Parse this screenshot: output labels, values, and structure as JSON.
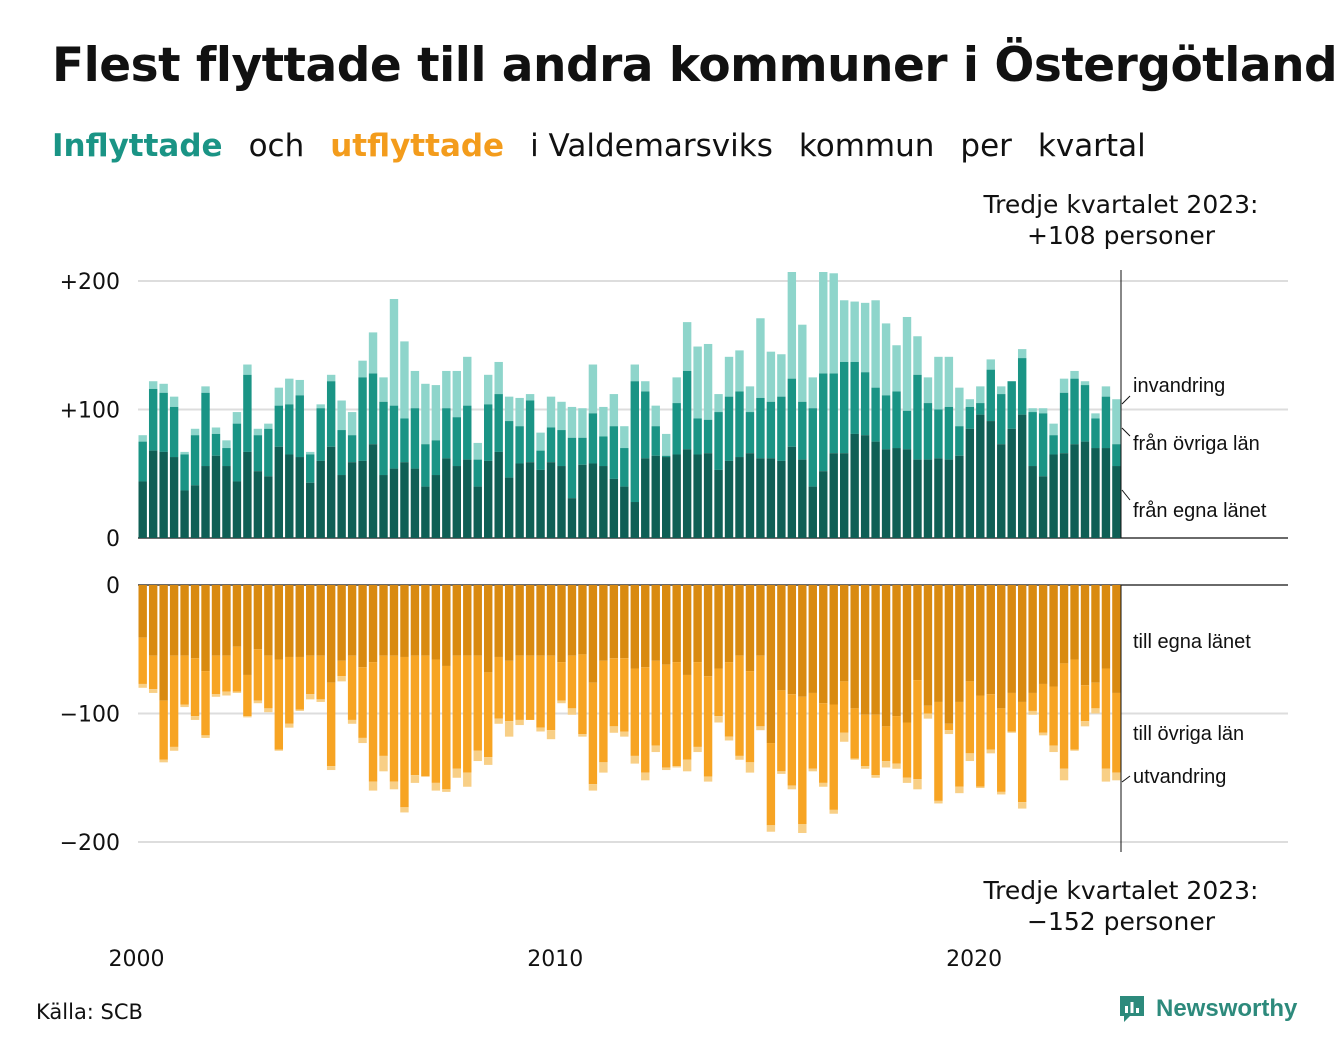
{
  "title": "Flest flyttade till andra kommuner i Östergötland",
  "subtitle": {
    "part1": "Inflyttade",
    "part2": "och",
    "part3": "utflyttade",
    "part4": "i Valdemarsviks",
    "part5": "kommun",
    "part6": "per",
    "part7": "kvartal"
  },
  "annotation_top": {
    "line1": "Tredje kvartalet 2023:",
    "line2": "+108 personer"
  },
  "annotation_bottom": {
    "line1": "Tredje kvartalet 2023:",
    "line2": "−152 personer"
  },
  "source": "Källa: SCB",
  "brand": "Newsworthy",
  "colors": {
    "in_own": "#0f5f55",
    "in_other": "#1a9485",
    "in_immig": "#8ed5cb",
    "out_own": "#d98a10",
    "out_other": "#f7a423",
    "out_emig": "#f8cf86"
  },
  "chart_data": {
    "type": "bar",
    "stacked": true,
    "x_start": "2000 Q1",
    "x_end": "2023 Q3",
    "x_tick_labels": [
      "2000",
      "2010",
      "2020"
    ],
    "y_tick_labels_top": [
      "+200",
      "+100",
      "0"
    ],
    "y_tick_labels_bottom": [
      "0",
      "−100",
      "−200"
    ],
    "ylim_top": [
      0,
      210
    ],
    "ylim_bottom": [
      -210,
      0
    ],
    "grid": true,
    "series_labels": {
      "in_immig": "invandring",
      "in_other": "från övriga län",
      "in_own": "från egna länet",
      "out_own": "till egna länet",
      "out_other": "till övriga län",
      "out_emig": "utvandring"
    },
    "inflow_totals": [
      80,
      122,
      120,
      110,
      67,
      85,
      118,
      86,
      76,
      98,
      135,
      85,
      89,
      117,
      124,
      123,
      67,
      104,
      127,
      107,
      98,
      138,
      160,
      125,
      186,
      153,
      130,
      120,
      119,
      130,
      130,
      141,
      74,
      127,
      137,
      110,
      109,
      112,
      82,
      110,
      106,
      102,
      101,
      135,
      102,
      112,
      87,
      135,
      122,
      103,
      81,
      125,
      168,
      149,
      151,
      112,
      141,
      146,
      118,
      171,
      145,
      143,
      207,
      166,
      125,
      207,
      206,
      185,
      184,
      183,
      185,
      167,
      150,
      172,
      157,
      125,
      141,
      141,
      117,
      108,
      118,
      139,
      118,
      122,
      147,
      101,
      101,
      89,
      124,
      130,
      122,
      97,
      118,
      108
    ],
    "inflow_other_tops": [
      75,
      116,
      113,
      102,
      65,
      80,
      113,
      81,
      70,
      89,
      127,
      80,
      85,
      103,
      104,
      111,
      65,
      101,
      122,
      84,
      80,
      125,
      128,
      106,
      103,
      93,
      101,
      73,
      76,
      101,
      94,
      103,
      61,
      104,
      112,
      91,
      87,
      107,
      68,
      86,
      84,
      78,
      78,
      97,
      79,
      87,
      70,
      122,
      114,
      87,
      64,
      105,
      130,
      93,
      92,
      98,
      110,
      114,
      98,
      109,
      106,
      110,
      124,
      106,
      101,
      128,
      128,
      137,
      137,
      129,
      117,
      111,
      114,
      99,
      127,
      105,
      100,
      102,
      87,
      102,
      105,
      131,
      112,
      122,
      140,
      98,
      97,
      80,
      113,
      124,
      119,
      93,
      110,
      73
    ],
    "inflow_own": [
      44,
      68,
      67,
      63,
      37,
      41,
      56,
      64,
      56,
      44,
      67,
      52,
      48,
      71,
      65,
      63,
      43,
      60,
      71,
      49,
      59,
      60,
      73,
      49,
      54,
      59,
      54,
      40,
      49,
      62,
      56,
      61,
      40,
      60,
      67,
      47,
      58,
      59,
      53,
      59,
      56,
      31,
      57,
      58,
      56,
      46,
      40,
      28,
      62,
      64,
      63,
      65,
      69,
      65,
      66,
      53,
      60,
      63,
      66,
      62,
      62,
      60,
      71,
      61,
      40,
      52,
      66,
      66,
      81,
      80,
      75,
      69,
      70,
      69,
      61,
      61,
      62,
      61,
      64,
      85,
      96,
      91,
      73,
      85,
      96,
      56,
      48,
      65,
      66,
      73,
      75,
      70,
      70,
      56
    ],
    "outflow_totals": [
      -80,
      -84,
      -138,
      -129,
      -95,
      -105,
      -119,
      -87,
      -86,
      -84,
      -103,
      -92,
      -99,
      -129,
      -111,
      -98,
      -89,
      -91,
      -144,
      -75,
      -108,
      -123,
      -160,
      -145,
      -159,
      -177,
      -154,
      -149,
      -160,
      -161,
      -150,
      -157,
      -137,
      -140,
      -108,
      -118,
      -109,
      -104,
      -114,
      -120,
      -92,
      -101,
      -118,
      -160,
      -146,
      -115,
      -118,
      -139,
      -152,
      -130,
      -144,
      -142,
      -145,
      -130,
      -153,
      -107,
      -121,
      -136,
      -146,
      -113,
      -192,
      -147,
      -159,
      -193,
      -145,
      -157,
      -178,
      -122,
      -136,
      -143,
      -150,
      -142,
      -143,
      -154,
      -159,
      -104,
      -170,
      -116,
      -162,
      -137,
      -158,
      -131,
      -163,
      -115,
      -174,
      -101,
      -117,
      -130,
      -152,
      -129,
      -110,
      -100,
      -153,
      -152
    ],
    "outflow_other_bottoms": [
      -77,
      -81,
      -136,
      -126,
      -93,
      -102,
      -117,
      -85,
      -83,
      -83,
      -102,
      -90,
      -96,
      -128,
      -108,
      -97,
      -85,
      -89,
      -141,
      -71,
      -105,
      -119,
      -153,
      -133,
      -153,
      -173,
      -148,
      -149,
      -154,
      -159,
      -143,
      -146,
      -129,
      -134,
      -104,
      -106,
      -105,
      -105,
      -111,
      -113,
      -90,
      -96,
      -116,
      -155,
      -138,
      -110,
      -114,
      -133,
      -146,
      -125,
      -142,
      -141,
      -136,
      -126,
      -149,
      -102,
      -118,
      -133,
      -138,
      -110,
      -187,
      -145,
      -156,
      -186,
      -143,
      -154,
      -175,
      -115,
      -135,
      -141,
      -148,
      -137,
      -139,
      -150,
      -151,
      -100,
      -168,
      -113,
      -157,
      -131,
      -157,
      -128,
      -161,
      -114,
      -169,
      -98,
      -115,
      -125,
      -143,
      -128,
      -106,
      -96,
      -143,
      -146
    ],
    "outflow_own": [
      -41,
      -55,
      -90,
      -55,
      -55,
      -57,
      -67,
      -55,
      -55,
      -48,
      -70,
      -50,
      -55,
      -58,
      -56,
      -56,
      -55,
      -55,
      -76,
      -59,
      -55,
      -64,
      -60,
      -55,
      -55,
      -56,
      -55,
      -55,
      -58,
      -63,
      -55,
      -55,
      -55,
      -68,
      -56,
      -59,
      -55,
      -55,
      -55,
      -55,
      -60,
      -55,
      -54,
      -76,
      -59,
      -57,
      -57,
      -65,
      -64,
      -59,
      -62,
      -60,
      -70,
      -60,
      -71,
      -65,
      -60,
      -55,
      -67,
      -55,
      -123,
      -82,
      -85,
      -87,
      -84,
      -92,
      -93,
      -75,
      -96,
      -101,
      -101,
      -110,
      -102,
      -107,
      -74,
      -94,
      -91,
      -108,
      -91,
      -75,
      -86,
      -85,
      -96,
      -84,
      -91,
      -84,
      -77,
      -79,
      -61,
      -58,
      -78,
      -76,
      -65,
      -84
    ]
  }
}
